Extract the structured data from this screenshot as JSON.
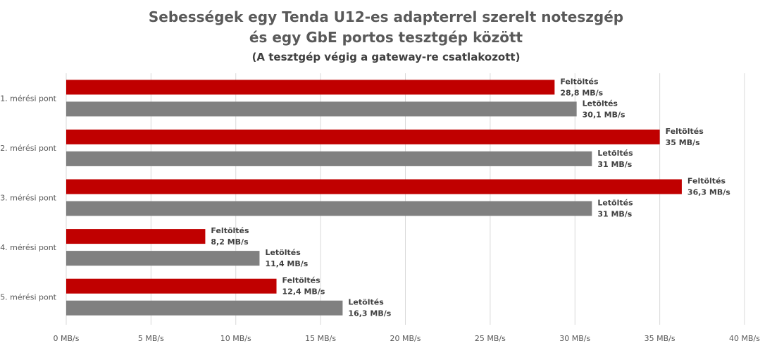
{
  "chart_data": {
    "type": "bar",
    "orientation": "horizontal",
    "title_line1": "Sebességek egy Tenda U12-es adapterrel szerelt noteszgép",
    "title_line2": "és egy GbE portos tesztgép között",
    "subtitle": "(A tesztgép végig a gateway-re csatlakozott)",
    "categories": [
      "1. mérési pont",
      "2. mérési pont",
      "3. mérési pont",
      "4. mérési pont",
      "5. mérési pont"
    ],
    "series": [
      {
        "name": "Feltöltés",
        "color": "#c00000",
        "values": [
          28.8,
          35,
          36.3,
          8.2,
          12.4
        ],
        "value_labels": [
          "28,8 MB/s",
          "35 MB/s",
          "36,3 MB/s",
          "8,2 MB/s",
          "12,4 MB/s"
        ]
      },
      {
        "name": "Letöltés",
        "color": "#808080",
        "values": [
          30.1,
          31,
          31,
          11.4,
          16.3
        ],
        "value_labels": [
          "30,1 MB/s",
          "31 MB/s",
          "31 MB/s",
          "11,4 MB/s",
          "16,3 MB/s"
        ]
      }
    ],
    "xlim": [
      0,
      40
    ],
    "x_ticks": [
      0,
      5,
      10,
      15,
      20,
      25,
      30,
      35,
      40
    ],
    "x_tick_labels": [
      "0 MB/s",
      "5 MB/s",
      "10 MB/s",
      "15 MB/s",
      "20 MB/s",
      "25 MB/s",
      "30 MB/s",
      "35 MB/s",
      "40 MB/s"
    ],
    "grid": true,
    "legend": "none"
  }
}
